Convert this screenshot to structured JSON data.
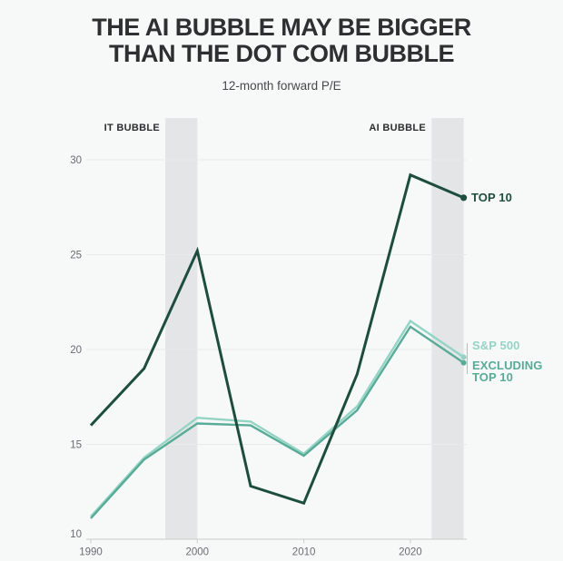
{
  "title": {
    "line1": "THE AI BUBBLE MAY BE BIGGER",
    "line2": "THAN THE DOT COM BUBBLE"
  },
  "subtitle": "12-month forward P/E",
  "end_labels": {
    "top10": "TOP 10",
    "sp500": "S&P 500",
    "sp500_ex": [
      "EXCLUDING",
      "TOP 10"
    ]
  },
  "colors": {
    "background": "#f7f8f8",
    "band": "#e4e5e6",
    "grid": "#e9ebeb",
    "axis": "#c8cdcd",
    "title_text": "#2d2f30",
    "subtitle_text": "#46494c",
    "tick_text": "#686e71",
    "annotation_text": "#2b2e2e",
    "top10": "#1d4e3d",
    "sp500": "#93d4c5",
    "sp500_ex": "#58ab97",
    "bracket": "#b7bdbd"
  },
  "chart_data": {
    "type": "line",
    "title": "THE AI BUBBLE MAY BE BIGGER THAN THE DOT COM BUBBLE",
    "subtitle": "12-month forward P/E",
    "x": [
      1990,
      1995,
      2000,
      2005,
      2010,
      2015,
      2020,
      2025
    ],
    "series": [
      {
        "key": "top10",
        "name": "TOP 10",
        "color": "#1d4e3d",
        "values": [
          16.0,
          19.0,
          25.2,
          12.8,
          11.9,
          18.7,
          29.2,
          28.0
        ]
      },
      {
        "key": "sp500",
        "name": "S&P 500",
        "color": "#93d4c5",
        "values": [
          11.2,
          14.3,
          16.4,
          16.2,
          14.5,
          17.0,
          21.5,
          19.6
        ]
      },
      {
        "key": "sp500_ex",
        "name": "S&P 500 EXCLUDING TOP 10",
        "color": "#58ab97",
        "values": [
          11.1,
          14.2,
          16.1,
          16.0,
          14.4,
          16.8,
          21.2,
          19.3
        ]
      }
    ],
    "x_ticks": [
      1990,
      2000,
      2010,
      2020
    ],
    "y_ticks": [
      30,
      25,
      20,
      15,
      10
    ],
    "xlim": [
      1990,
      2025
    ],
    "ylim": [
      10,
      32
    ],
    "grid": "horizontal",
    "legend_position": "right-end-labels",
    "bands": [
      {
        "label": "IT BUBBLE",
        "from": 1997,
        "to": 2000
      },
      {
        "label": "AI BUBBLE",
        "from": 2022,
        "to": 2025
      }
    ]
  }
}
